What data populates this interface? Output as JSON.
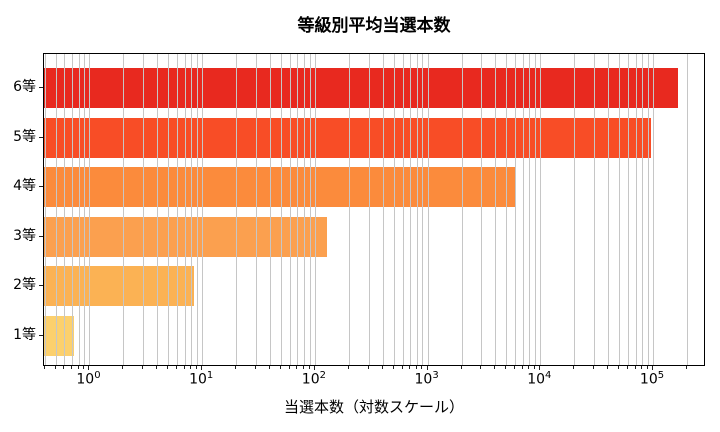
{
  "chart": {
    "title": "等級別平均当選本数",
    "xlabel": "当選本数（対数スケール）"
  },
  "chart_data": {
    "type": "bar",
    "orientation": "horizontal",
    "xscale": "log",
    "title": "等級別平均当選本数",
    "xlabel": "当選本数（対数スケール）",
    "ylabel": "",
    "categories": [
      "6等",
      "5等",
      "4等",
      "3等",
      "2等",
      "1等"
    ],
    "values": [
      165000,
      95000,
      6100,
      127,
      8.5,
      0.73
    ],
    "bar_colors": [
      "#e8291f",
      "#f84d26",
      "#fb8b3c",
      "#fba04f",
      "#fbb254",
      "#fcd06d"
    ],
    "xlim": [
      0.395,
      295000
    ],
    "x_major_tick_exponents": [
      0,
      1,
      2,
      3,
      4,
      5
    ],
    "grid": true,
    "grid_color": "#c6c6c6",
    "background": "#ffffff",
    "legend": "none"
  }
}
